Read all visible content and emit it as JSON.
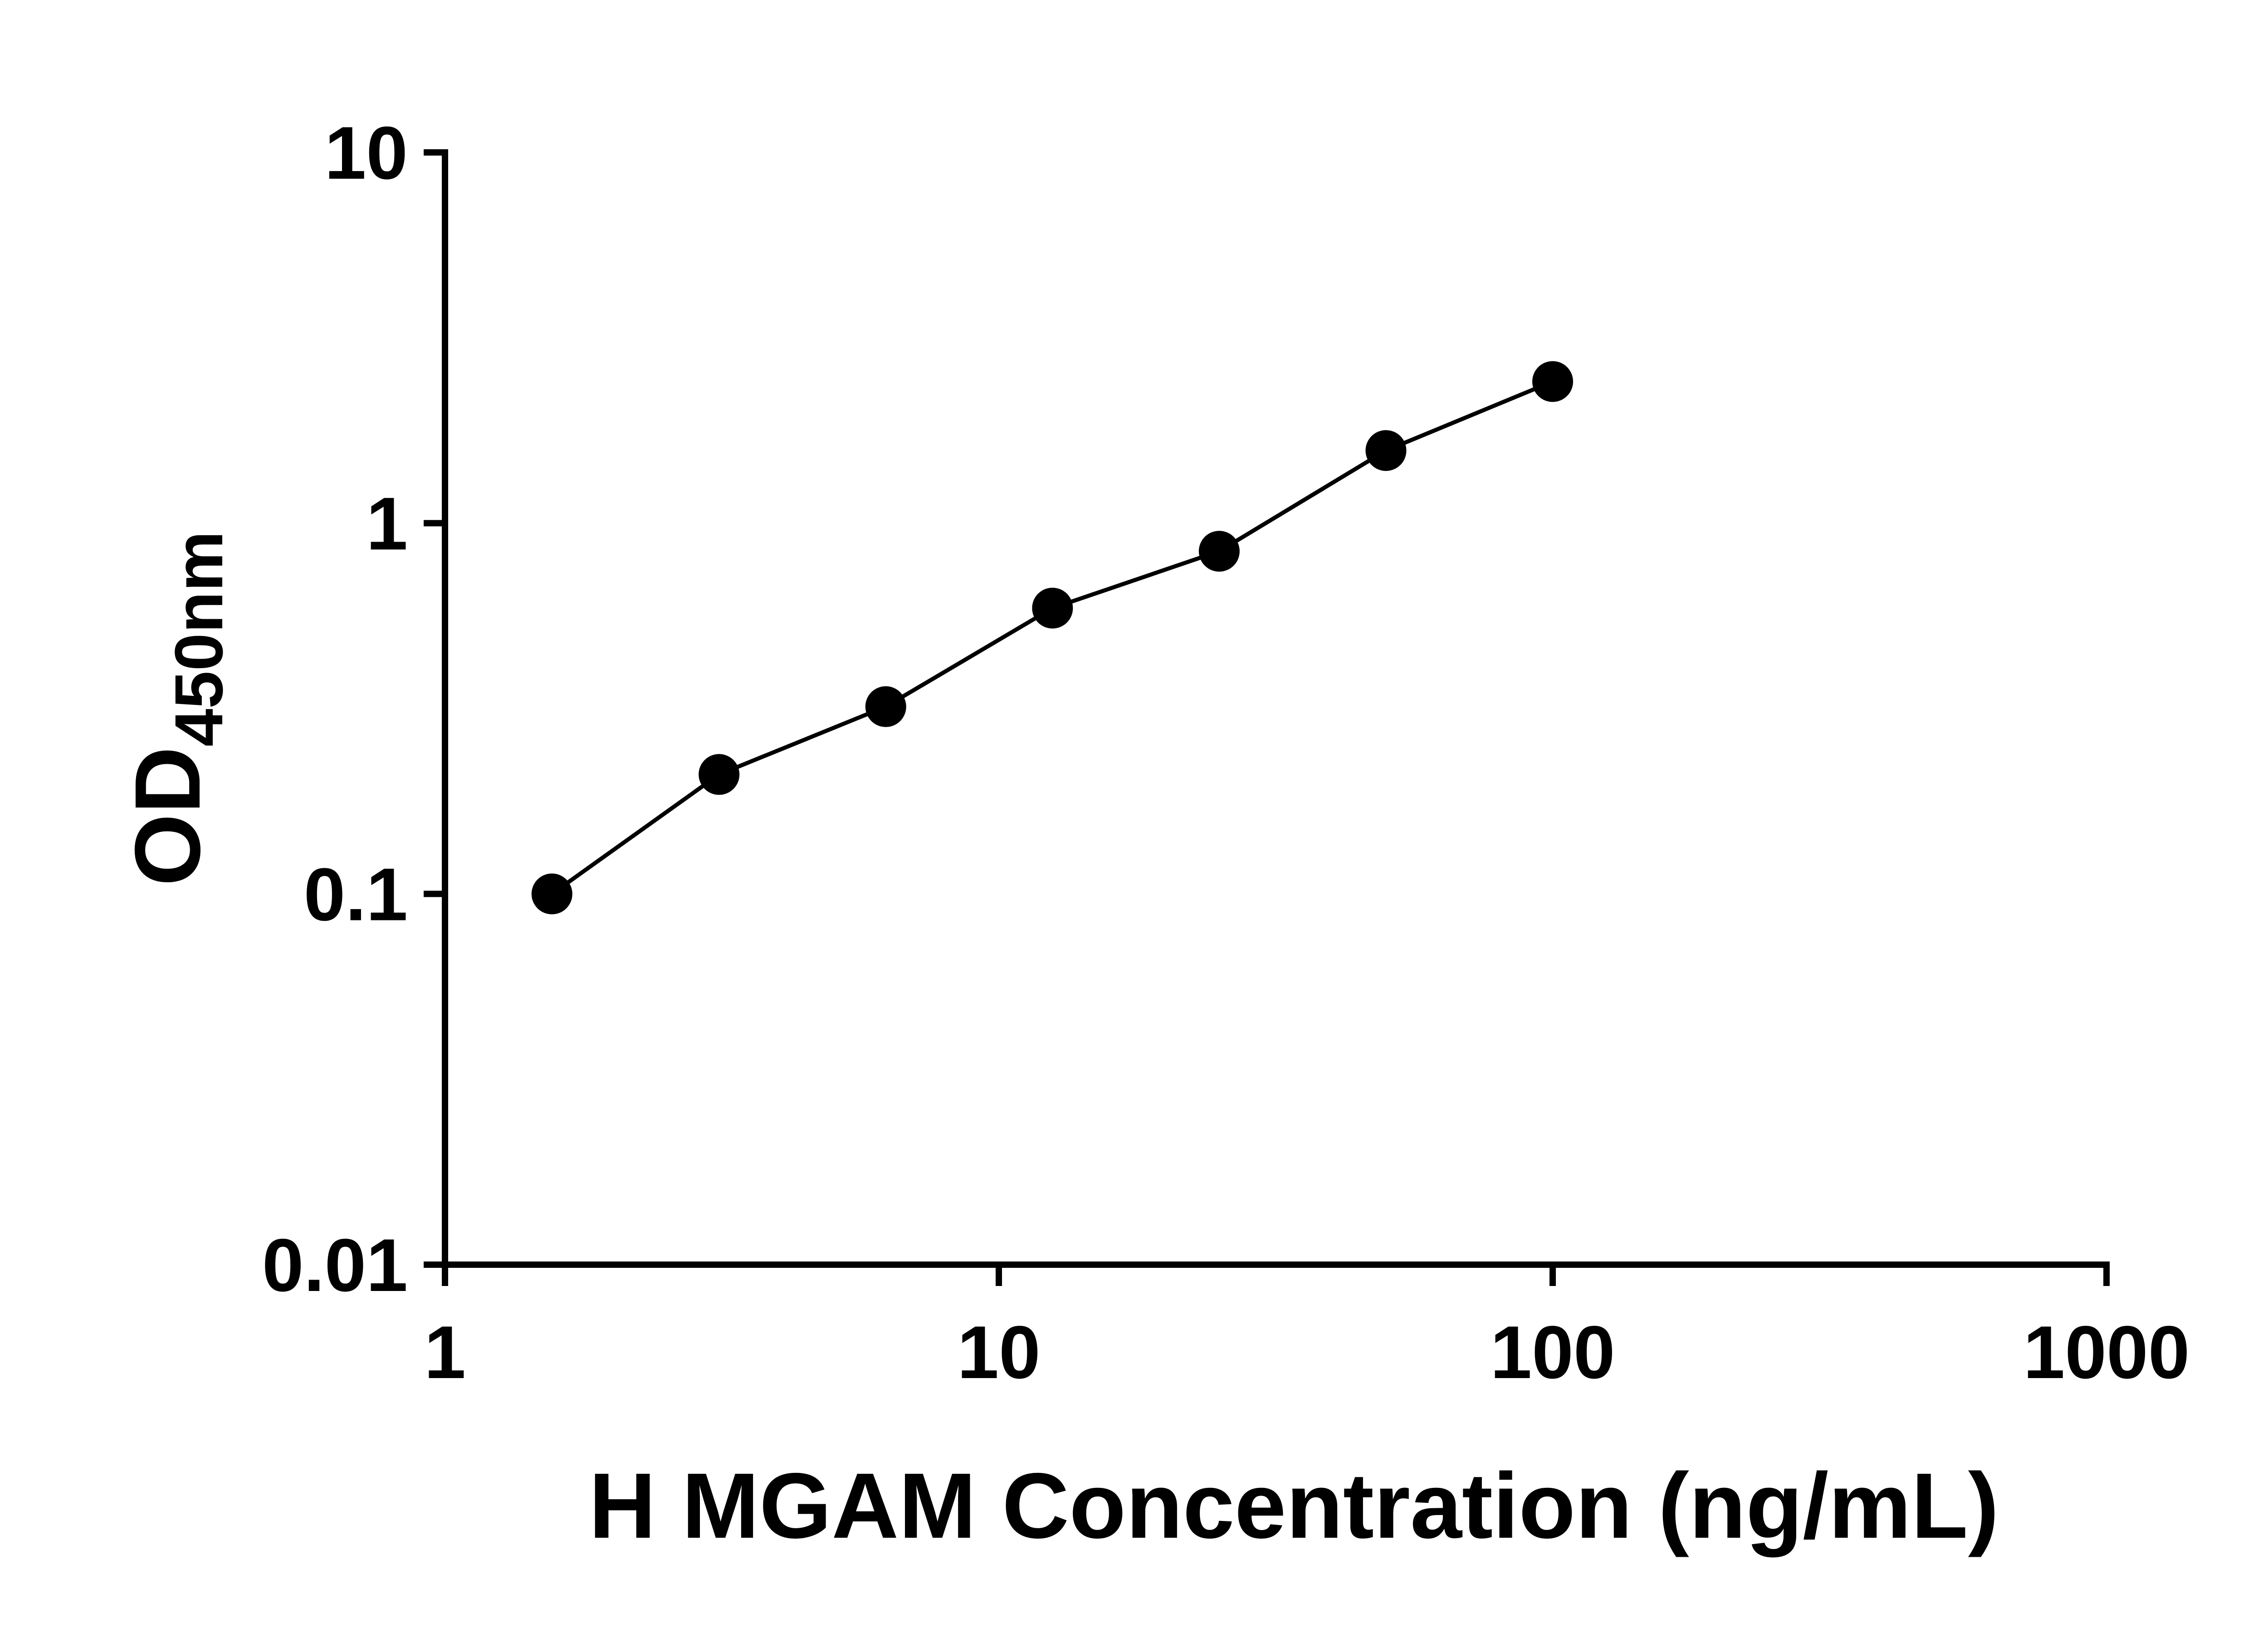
{
  "page": {
    "background": "#ffffff",
    "foreground": "#000000"
  },
  "chart_data": {
    "type": "scatter",
    "title": "",
    "xlabel": "H MGAM Concentration (ng/mL)",
    "ylabel": "OD450nm",
    "ylabel_main": "OD",
    "ylabel_sub": "450nm",
    "x_scale": "log",
    "y_scale": "log",
    "xlim": [
      1,
      1000
    ],
    "ylim": [
      0.01,
      10
    ],
    "x_ticks": [
      "1",
      "10",
      "100",
      "1000"
    ],
    "y_ticks": [
      "0.01",
      "0.1",
      "1",
      "10"
    ],
    "grid": false,
    "legend": "none",
    "axis_color": "#000000",
    "series": [
      {
        "marker": "filled-circle",
        "color": "#000000",
        "line": "solid",
        "points": [
          {
            "x": 1.56,
            "y": 0.1
          },
          {
            "x": 3.125,
            "y": 0.21
          },
          {
            "x": 6.25,
            "y": 0.32
          },
          {
            "x": 12.5,
            "y": 0.59
          },
          {
            "x": 25,
            "y": 0.84
          },
          {
            "x": 50,
            "y": 1.57
          },
          {
            "x": 100,
            "y": 2.41
          }
        ]
      }
    ]
  }
}
